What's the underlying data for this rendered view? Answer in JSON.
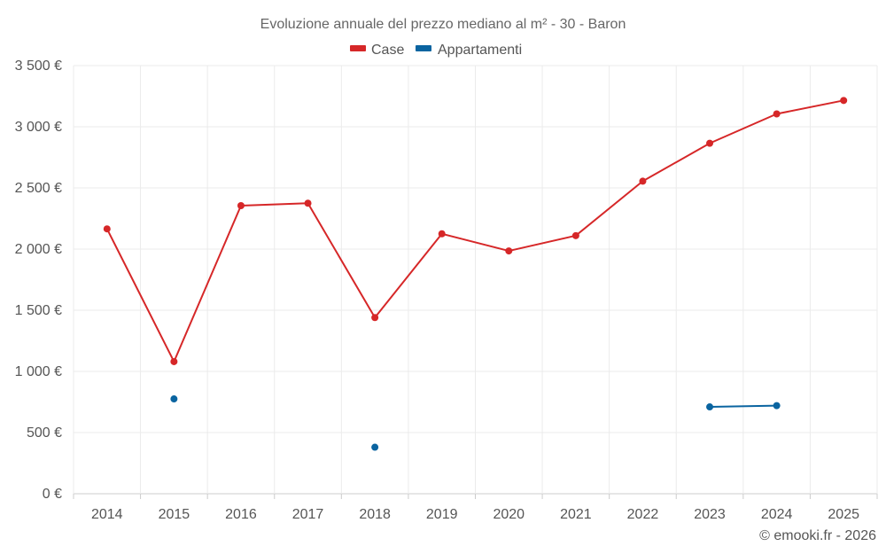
{
  "chart_data": {
    "type": "line",
    "title": "Evoluzione annuale del prezzo mediano al m² - 30 - Baron",
    "xlabel": "",
    "ylabel": "",
    "categories": [
      "2014",
      "2015",
      "2016",
      "2017",
      "2018",
      "2019",
      "2020",
      "2021",
      "2022",
      "2023",
      "2024",
      "2025"
    ],
    "ylim": [
      0,
      3500
    ],
    "yticks": [
      0,
      500,
      1000,
      1500,
      2000,
      2500,
      3000,
      3500
    ],
    "ytick_labels": [
      "0 €",
      "500 €",
      "1 000 €",
      "1 500 €",
      "2 000 €",
      "2 500 €",
      "3 000 €",
      "3 500 €"
    ],
    "grid": true,
    "legend_position": "top-center",
    "series": [
      {
        "name": "Case",
        "color": "#d62728",
        "values": [
          2165,
          1080,
          2355,
          2375,
          1440,
          2125,
          1985,
          2110,
          2555,
          2865,
          3105,
          3215
        ]
      },
      {
        "name": "Appartamenti",
        "color": "#0a64a0",
        "values": [
          null,
          775,
          null,
          null,
          380,
          null,
          null,
          null,
          null,
          710,
          720,
          null
        ]
      }
    ],
    "credit": "© emooki.fr - 2026"
  }
}
